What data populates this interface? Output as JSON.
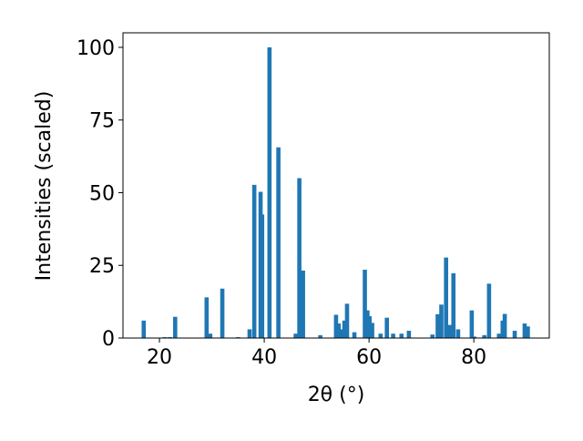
{
  "chart_data": {
    "type": "bar",
    "xlabel": "2θ (°)",
    "ylabel": "Intensities (scaled)",
    "color": "#1f77b4",
    "x": [
      17.0,
      21.0,
      22.0,
      23.0,
      29.0,
      29.7,
      32.0,
      35.0,
      37.2,
      38.1,
      39.3,
      39.6,
      41.0,
      42.7,
      46.0,
      46.7,
      47.4,
      50.7,
      53.7,
      54.2,
      54.7,
      55.3,
      55.8,
      57.2,
      59.2,
      59.7,
      60.1,
      60.6,
      62.2,
      63.4,
      64.6,
      66.2,
      67.6,
      72.1,
      73.1,
      73.8,
      74.7,
      75.4,
      76.1,
      77.0,
      79.6,
      80.1,
      82.0,
      82.9,
      84.8,
      85.5,
      85.9,
      87.8,
      89.7,
      90.3
    ],
    "values": [
      6,
      0.3,
      0.3,
      7.3,
      14,
      1.5,
      17,
      0.3,
      3,
      52.7,
      50.3,
      42.5,
      100,
      65.6,
      1.5,
      55,
      23.2,
      1,
      8,
      5,
      3,
      6,
      11.8,
      2,
      23.5,
      9.5,
      7.5,
      5.2,
      1.5,
      7,
      1.5,
      1.5,
      2.5,
      1.2,
      8.2,
      11.5,
      27.7,
      4.5,
      22.3,
      3,
      9.5,
      0.5,
      1,
      18.7,
      1.5,
      6,
      8.3,
      2.5,
      5,
      4
    ],
    "xlim": [
      13.04,
      94.4
    ],
    "xticks": [
      20,
      40,
      60,
      80
    ],
    "ylim": [
      0,
      105
    ],
    "yticks": [
      0,
      25,
      50,
      75,
      100
    ]
  }
}
